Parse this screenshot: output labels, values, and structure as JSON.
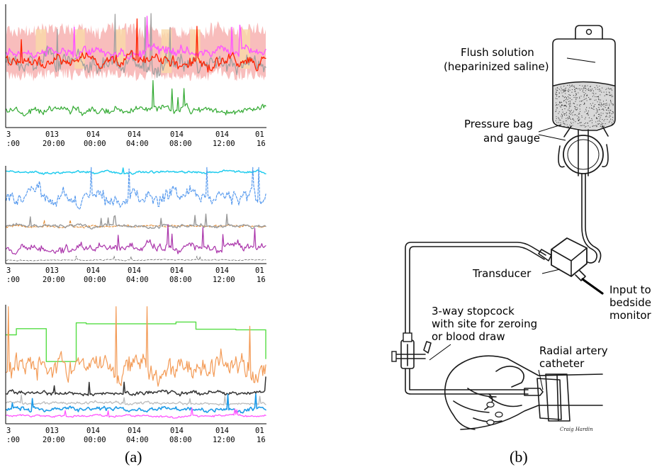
{
  "panel_a": {
    "caption": "(a)",
    "strips": [
      {
        "top_labels": [
          "3",
          "013",
          "014",
          "014",
          "014",
          "014",
          "01"
        ],
        "bottom_labels": [
          ":00",
          "20:00",
          "00:00",
          "04:00",
          "08:00",
          "12:00",
          "16"
        ],
        "series": [
          {
            "color": "#f7b2b0",
            "kind": "band",
            "base": 0.42,
            "amp": 0.22,
            "seed": 11
          },
          {
            "color": "#f9d9a8",
            "kind": "bars",
            "seed": 21
          },
          {
            "color": "#a0a0a0",
            "kind": "line",
            "base": 0.48,
            "amp": 0.12,
            "seed": 31,
            "width": 1.3
          },
          {
            "color": "#ff55ff",
            "kind": "line",
            "base": 0.38,
            "amp": 0.07,
            "seed": 41,
            "width": 1.4
          },
          {
            "color": "#ff2200",
            "kind": "line",
            "base": 0.46,
            "amp": 0.08,
            "seed": 51,
            "width": 1.3
          },
          {
            "color": "#33aa33",
            "kind": "line",
            "base": 0.86,
            "amp": 0.05,
            "seed": 61,
            "width": 1.2
          }
        ]
      },
      {
        "top_labels": [
          "3",
          "013",
          "014",
          "014",
          "014",
          "014",
          "01"
        ],
        "bottom_labels": [
          ":00",
          "20:00",
          "00:00",
          "04:00",
          "08:00",
          "12:00",
          "16"
        ],
        "series": [
          {
            "color": "#22ccee",
            "kind": "line",
            "base": 0.06,
            "amp": 0.02,
            "seed": 71,
            "width": 1.5
          },
          {
            "color": "#5599ee",
            "kind": "dash",
            "base": 0.32,
            "amp": 0.13,
            "seed": 81,
            "width": 1.2
          },
          {
            "color": "#e08020",
            "kind": "dash",
            "base": 0.62,
            "amp": 0.02,
            "seed": 91,
            "width": 1.0
          },
          {
            "color": "#999999",
            "kind": "line",
            "base": 0.62,
            "amp": 0.03,
            "seed": 101,
            "width": 1.4
          },
          {
            "color": "#aa33aa",
            "kind": "line",
            "base": 0.84,
            "amp": 0.07,
            "seed": 111,
            "width": 1.2
          },
          {
            "color": "#666666",
            "kind": "dash",
            "base": 0.97,
            "amp": 0.01,
            "seed": 121,
            "width": 0.8
          }
        ]
      },
      {
        "top_labels": [
          "3",
          "013",
          "014",
          "014",
          "014",
          "014",
          "01"
        ],
        "bottom_labels": [
          ":00",
          "20:00",
          "00:00",
          "04:00",
          "08:00",
          "12:00",
          "16"
        ],
        "series": [
          {
            "color": "#55dd44",
            "kind": "step",
            "seed": 131,
            "width": 1.4
          },
          {
            "color": "#f39a55",
            "kind": "line",
            "base": 0.54,
            "amp": 0.16,
            "seed": 141,
            "width": 1.2
          },
          {
            "color": "#333333",
            "kind": "line",
            "base": 0.74,
            "amp": 0.03,
            "seed": 151,
            "width": 1.5
          },
          {
            "color": "#bbbbbb",
            "kind": "line",
            "base": 0.83,
            "amp": 0.02,
            "seed": 161,
            "width": 1.3
          },
          {
            "color": "#1e9be8",
            "kind": "line",
            "base": 0.88,
            "amp": 0.03,
            "seed": 171,
            "width": 1.6
          },
          {
            "color": "#ff55ff",
            "kind": "line",
            "base": 0.94,
            "amp": 0.015,
            "seed": 181,
            "width": 1.3
          }
        ]
      }
    ]
  },
  "panel_b": {
    "caption": "(b)",
    "labels": {
      "flush_line1": "Flush solution",
      "flush_line2": "(heparinized saline)",
      "bag_line1": "Pressure bag",
      "bag_line2": "and gauge",
      "transducer": "Transducer",
      "input_line1": "Input to",
      "input_line2": "bedside",
      "input_line3": "monitor",
      "stopcock_line1": "3-way stopcock",
      "stopcock_line2": "with site for zeroing",
      "stopcock_line3": "or blood draw",
      "radial_line1": "Radial artery",
      "radial_line2": "catheter",
      "signature": "Craig Hardin"
    }
  }
}
